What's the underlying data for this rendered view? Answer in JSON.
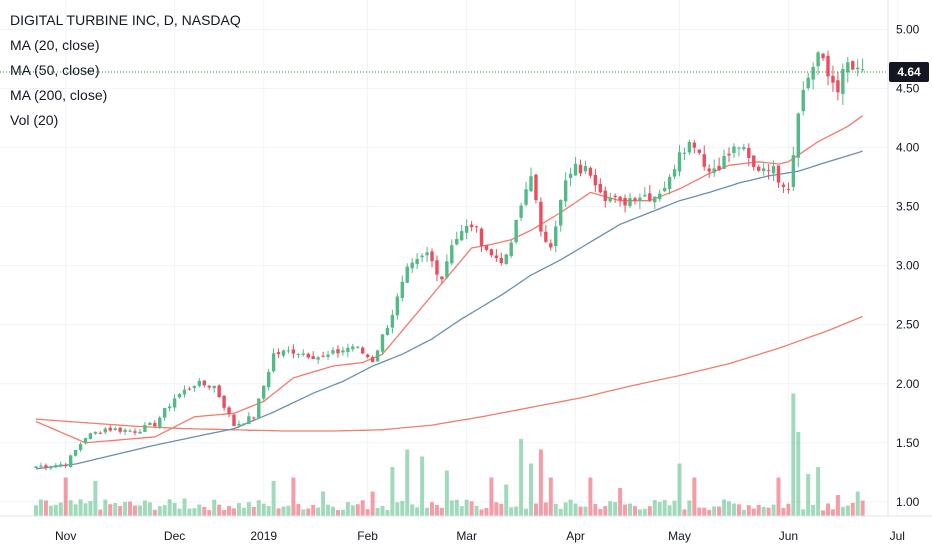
{
  "legend": {
    "title": "DIGITAL TURBINE INC, D, NASDAQ",
    "ma20": "MA (20, close)",
    "ma50": "MA (50, close)",
    "ma200": "MA (200, close)",
    "vol": "Vol (20)"
  },
  "colors": {
    "up": "#53b987",
    "down": "#eb4d5c",
    "ma20": "#f5796b",
    "ma50": "#6a8fae",
    "ma200": "#f07f6a",
    "last_price_bg": "#131722",
    "last_price_line": "#3c8a3c"
  },
  "chart_data": {
    "type": "candlestick",
    "title": "DIGITAL TURBINE INC, D, NASDAQ",
    "y_range": [
      0.88,
      5.25
    ],
    "y_ticks": [
      "1.00",
      "1.50",
      "2.00",
      "2.50",
      "3.00",
      "3.50",
      "4.00",
      "4.50",
      "5.00"
    ],
    "x_ticks": [
      {
        "label": "Nov",
        "bar": 6
      },
      {
        "label": "Dec",
        "bar": 28
      },
      {
        "label": "2019",
        "bar": 46
      },
      {
        "label": "Feb",
        "bar": 67
      },
      {
        "label": "Mar",
        "bar": 87
      },
      {
        "label": "Apr",
        "bar": 109
      },
      {
        "label": "May",
        "bar": 130
      },
      {
        "label": "Jun",
        "bar": 152
      },
      {
        "label": "Jul",
        "bar": 174
      }
    ],
    "last_price": "4.64",
    "last_price_value": 4.64,
    "close_path": [
      [
        0,
        1.3
      ],
      [
        6,
        1.32
      ],
      [
        10,
        1.55
      ],
      [
        14,
        1.62
      ],
      [
        20,
        1.6
      ],
      [
        24,
        1.66
      ],
      [
        28,
        1.88
      ],
      [
        32,
        2.0
      ],
      [
        36,
        1.98
      ],
      [
        40,
        1.65
      ],
      [
        44,
        1.72
      ],
      [
        48,
        2.25
      ],
      [
        52,
        2.28
      ],
      [
        58,
        2.22
      ],
      [
        64,
        2.32
      ],
      [
        68,
        2.2
      ],
      [
        72,
        2.6
      ],
      [
        75,
        2.95
      ],
      [
        79,
        3.1
      ],
      [
        82,
        2.9
      ],
      [
        84,
        3.2
      ],
      [
        88,
        3.35
      ],
      [
        92,
        3.08
      ],
      [
        95,
        3.05
      ],
      [
        98,
        3.5
      ],
      [
        100,
        3.8
      ],
      [
        102,
        3.25
      ],
      [
        104,
        3.2
      ],
      [
        107,
        3.7
      ],
      [
        109,
        3.82
      ],
      [
        112,
        3.8
      ],
      [
        115,
        3.6
      ],
      [
        118,
        3.52
      ],
      [
        121,
        3.6
      ],
      [
        125,
        3.6
      ],
      [
        128,
        3.72
      ],
      [
        130,
        4.0
      ],
      [
        133,
        4.05
      ],
      [
        136,
        3.8
      ],
      [
        139,
        3.9
      ],
      [
        142,
        4.02
      ],
      [
        145,
        3.82
      ],
      [
        148,
        3.85
      ],
      [
        150,
        3.75
      ],
      [
        152,
        3.68
      ],
      [
        153,
        3.96
      ],
      [
        154,
        4.35
      ],
      [
        156,
        4.6
      ],
      [
        158,
        4.8
      ],
      [
        160,
        4.6
      ],
      [
        162,
        4.52
      ],
      [
        164,
        4.7
      ],
      [
        166,
        4.62
      ],
      [
        167,
        4.64
      ]
    ],
    "ma20_path": [
      [
        0,
        1.68
      ],
      [
        10,
        1.5
      ],
      [
        24,
        1.55
      ],
      [
        32,
        1.72
      ],
      [
        40,
        1.75
      ],
      [
        46,
        1.85
      ],
      [
        52,
        2.05
      ],
      [
        60,
        2.15
      ],
      [
        66,
        2.18
      ],
      [
        70,
        2.25
      ],
      [
        76,
        2.55
      ],
      [
        82,
        2.85
      ],
      [
        88,
        3.15
      ],
      [
        92,
        3.18
      ],
      [
        96,
        3.22
      ],
      [
        100,
        3.3
      ],
      [
        106,
        3.45
      ],
      [
        112,
        3.62
      ],
      [
        118,
        3.55
      ],
      [
        124,
        3.55
      ],
      [
        130,
        3.65
      ],
      [
        136,
        3.78
      ],
      [
        140,
        3.85
      ],
      [
        146,
        3.88
      ],
      [
        150,
        3.86
      ],
      [
        152,
        3.88
      ],
      [
        158,
        4.05
      ],
      [
        164,
        4.18
      ],
      [
        167,
        4.27
      ]
    ],
    "ma50_path": [
      [
        0,
        1.28
      ],
      [
        8,
        1.32
      ],
      [
        16,
        1.4
      ],
      [
        24,
        1.48
      ],
      [
        32,
        1.55
      ],
      [
        40,
        1.62
      ],
      [
        48,
        1.76
      ],
      [
        56,
        1.92
      ],
      [
        62,
        2.02
      ],
      [
        68,
        2.15
      ],
      [
        74,
        2.25
      ],
      [
        80,
        2.38
      ],
      [
        86,
        2.55
      ],
      [
        94,
        2.75
      ],
      [
        100,
        2.92
      ],
      [
        106,
        3.05
      ],
      [
        112,
        3.2
      ],
      [
        118,
        3.35
      ],
      [
        124,
        3.45
      ],
      [
        130,
        3.55
      ],
      [
        136,
        3.62
      ],
      [
        142,
        3.7
      ],
      [
        148,
        3.76
      ],
      [
        154,
        3.8
      ],
      [
        160,
        3.88
      ],
      [
        167,
        3.97
      ]
    ],
    "ma200_path": [
      [
        0,
        1.7
      ],
      [
        10,
        1.67
      ],
      [
        20,
        1.64
      ],
      [
        30,
        1.62
      ],
      [
        40,
        1.61
      ],
      [
        50,
        1.6
      ],
      [
        60,
        1.6
      ],
      [
        70,
        1.61
      ],
      [
        80,
        1.65
      ],
      [
        90,
        1.72
      ],
      [
        100,
        1.8
      ],
      [
        110,
        1.88
      ],
      [
        120,
        1.98
      ],
      [
        130,
        2.07
      ],
      [
        140,
        2.17
      ],
      [
        150,
        2.3
      ],
      [
        160,
        2.45
      ],
      [
        167,
        2.57
      ]
    ],
    "volume_spikes": [
      [
        6,
        0.55
      ],
      [
        12,
        0.5
      ],
      [
        20,
        0.15
      ],
      [
        30,
        0.25
      ],
      [
        48,
        0.5
      ],
      [
        52,
        0.55
      ],
      [
        58,
        0.35
      ],
      [
        68,
        0.35
      ],
      [
        72,
        0.7
      ],
      [
        75,
        0.95
      ],
      [
        78,
        0.85
      ],
      [
        83,
        0.65
      ],
      [
        92,
        0.55
      ],
      [
        95,
        0.45
      ],
      [
        98,
        1.1
      ],
      [
        100,
        0.75
      ],
      [
        102,
        0.95
      ],
      [
        104,
        0.55
      ],
      [
        112,
        0.55
      ],
      [
        118,
        0.4
      ],
      [
        130,
        0.75
      ],
      [
        133,
        0.55
      ],
      [
        150,
        0.55
      ],
      [
        153,
        1.75
      ],
      [
        154,
        1.2
      ],
      [
        156,
        0.6
      ],
      [
        158,
        0.7
      ],
      [
        162,
        0.3
      ],
      [
        166,
        0.35
      ]
    ]
  }
}
